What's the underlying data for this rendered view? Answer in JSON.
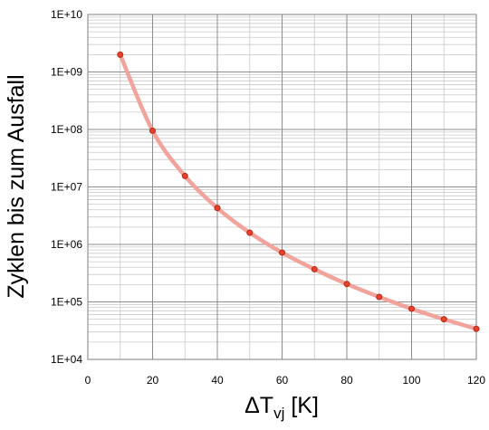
{
  "chart_data": {
    "type": "line",
    "xlabel_main": "ΔT",
    "xlabel_sub": "vj",
    "xlabel_unit": " [K]",
    "ylabel": "Zyklen bis zum Ausfall",
    "x_scale": "linear",
    "y_scale": "log",
    "xlim": [
      0,
      120
    ],
    "ylim": [
      10000,
      10000000000
    ],
    "x_ticks": [
      0,
      20,
      40,
      60,
      80,
      100,
      120
    ],
    "x_tick_labels": [
      "0",
      "20",
      "40",
      "60",
      "80",
      "100",
      "120"
    ],
    "y_ticks": [
      10000,
      100000,
      1000000,
      10000000,
      100000000,
      1000000000,
      10000000000
    ],
    "y_tick_labels": [
      "1E+04",
      "1E+05",
      "1E+06",
      "1E+07",
      "1E+08",
      "1E+09",
      "1E+10"
    ],
    "grid": true,
    "legend": false,
    "series": [
      {
        "x": [
          10,
          20,
          30,
          40,
          50,
          60,
          70,
          80,
          90,
          100,
          110,
          120
        ],
        "y": [
          2000000000,
          95000000,
          15500000,
          4300000,
          1600000,
          720000,
          370000,
          205000,
          122000,
          76000,
          50000,
          34000
        ],
        "line_color": "#f2a39b",
        "marker_fill": "#e8402a",
        "marker_stroke": "#b22a18"
      }
    ]
  }
}
